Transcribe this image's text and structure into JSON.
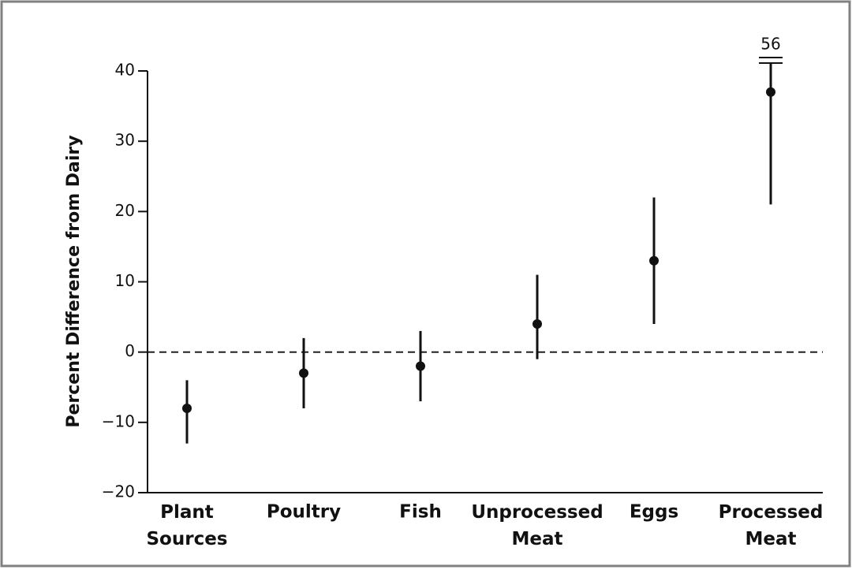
{
  "chart_data": {
    "type": "errorbar",
    "y_label": "Percent Difference from Dairy",
    "categories": [
      "Plant Sources",
      "Poultry",
      "Fish",
      "Unprocessed Meat",
      "Eggs",
      "Processed Meat"
    ],
    "values": [
      -8,
      -3,
      -2,
      4,
      13,
      37
    ],
    "lower": [
      -13,
      -8,
      -7,
      -1,
      4,
      21
    ],
    "upper": [
      -4,
      2,
      3,
      11,
      22,
      56
    ],
    "color": "#111111",
    "ylim": [
      -20,
      40
    ],
    "yticks": [
      {
        "value": -20,
        "label": "−20"
      },
      {
        "value": -10,
        "label": "−10"
      },
      0,
      10,
      20,
      30,
      40
    ],
    "reference_line": 0
  }
}
